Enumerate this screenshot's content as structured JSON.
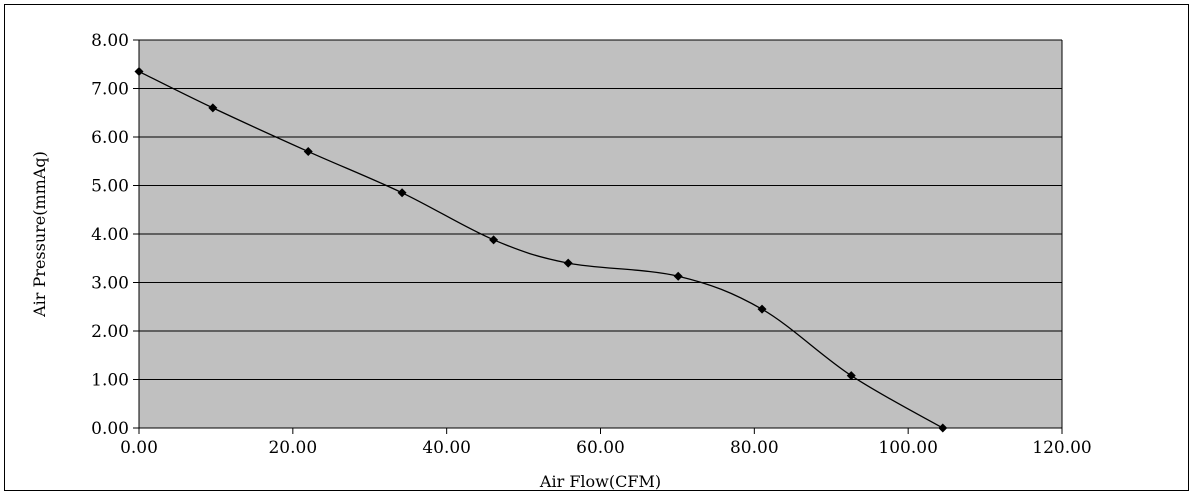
{
  "chart_data": {
    "type": "line",
    "xlabel": "Air Flow(CFM)",
    "ylabel": "Air Pressure(mmAq)",
    "xlim": [
      0,
      120
    ],
    "ylim": [
      0,
      8
    ],
    "x_ticks": [
      "0.00",
      "20.00",
      "40.00",
      "60.00",
      "80.00",
      "100.00",
      "120.00"
    ],
    "y_ticks": [
      "0.00",
      "1.00",
      "2.00",
      "3.00",
      "4.00",
      "5.00",
      "6.00",
      "7.00",
      "8.00"
    ],
    "grid": "horizontal",
    "legend": "none",
    "series": [
      {
        "x": [
          0.0,
          9.6,
          22.0,
          34.2,
          46.1,
          55.8,
          70.1,
          81.0,
          92.6,
          104.5
        ],
        "y": [
          7.35,
          6.6,
          5.7,
          4.85,
          3.88,
          3.4,
          3.13,
          2.45,
          1.08,
          0.0
        ]
      }
    ],
    "colors": {
      "plot_background": "#c0c0c0",
      "line": "#000000",
      "grid": "#000000"
    }
  }
}
